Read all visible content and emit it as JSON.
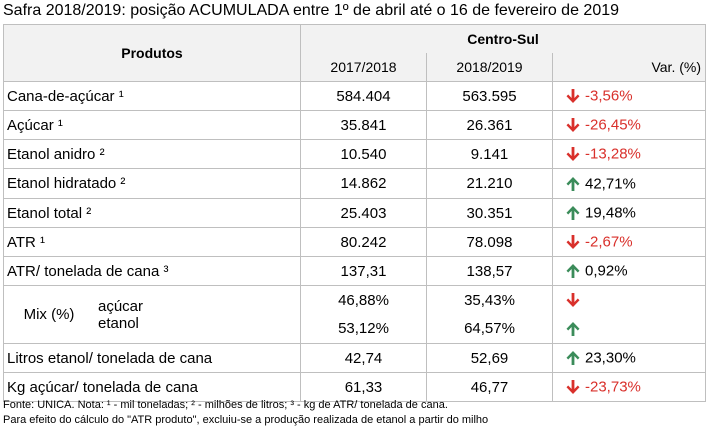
{
  "title": "Safra 2018/2019: posição ACUMULADA entre 1º de abril até o 16 de fevereiro de 2019",
  "header": {
    "produtos": "Produtos",
    "region": "Centro-Sul",
    "col1": "2017/2018",
    "col2": "2018/2019",
    "col3": "Var. (%)"
  },
  "rows": [
    {
      "label": "Cana-de-açúcar ¹",
      "v1": "584.404",
      "v2": "563.595",
      "var": "-3,56%",
      "dir": "down"
    },
    {
      "label": "Açúcar ¹",
      "v1": "35.841",
      "v2": "26.361",
      "var": "-26,45%",
      "dir": "down"
    },
    {
      "label": "Etanol anidro ²",
      "v1": "10.540",
      "v2": "9.141",
      "var": "-13,28%",
      "dir": "down"
    },
    {
      "label": "Etanol hidratado ²",
      "v1": "14.862",
      "v2": "21.210",
      "var": "42,71%",
      "dir": "up"
    },
    {
      "label": "Etanol total ²",
      "v1": "25.403",
      "v2": "30.351",
      "var": "19,48%",
      "dir": "up"
    },
    {
      "label": "ATR ¹",
      "v1": "80.242",
      "v2": "78.098",
      "var": "-2,67%",
      "dir": "down"
    },
    {
      "label": "ATR/ tonelada de cana ³",
      "v1": "137,31",
      "v2": "138,57",
      "var": "0,92%",
      "dir": "up"
    }
  ],
  "mix": {
    "label": "Mix (%)",
    "rows": [
      {
        "label": "açúcar",
        "v1": "46,88%",
        "v2": "35,43%",
        "var": "",
        "dir": "down"
      },
      {
        "label": "etanol",
        "v1": "53,12%",
        "v2": "64,57%",
        "var": "",
        "dir": "up"
      }
    ]
  },
  "rows_after": [
    {
      "label": "Litros etanol/ tonelada de cana",
      "v1": "42,74",
      "v2": "52,69",
      "var": "23,30%",
      "dir": "up"
    },
    {
      "label": "Kg açúcar/ tonelada de cana",
      "v1": "61,33",
      "v2": "46,77",
      "var": "-23,73%",
      "dir": "down"
    }
  ],
  "footer": {
    "line1": "Fonte: UNICA. Nota: ¹ - mil toneladas; ² - milhões de litros; ³ - kg de ATR/ tonelada de cana.",
    "line2": "Para efeito do cálculo do \"ATR produto\", excluiu-se a produção realizada de etanol a partir do milho"
  },
  "colors": {
    "down_arrow": "#d9302b",
    "up_arrow": "#3b8c5a",
    "negative_text": "#d9302b",
    "header_bg": "#f2f2f2"
  },
  "icons": {
    "down": "arrow-down-icon",
    "up": "arrow-up-icon"
  }
}
